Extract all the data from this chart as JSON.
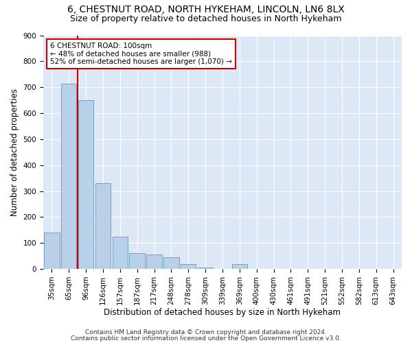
{
  "title": "6, CHESTNUT ROAD, NORTH HYKEHAM, LINCOLN, LN6 8LX",
  "subtitle": "Size of property relative to detached houses in North Hykeham",
  "xlabel": "Distribution of detached houses by size in North Hykeham",
  "ylabel": "Number of detached properties",
  "categories": [
    "35sqm",
    "65sqm",
    "96sqm",
    "126sqm",
    "157sqm",
    "187sqm",
    "217sqm",
    "248sqm",
    "278sqm",
    "309sqm",
    "339sqm",
    "369sqm",
    "400sqm",
    "430sqm",
    "461sqm",
    "491sqm",
    "521sqm",
    "552sqm",
    "582sqm",
    "613sqm",
    "643sqm"
  ],
  "values": [
    140,
    715,
    650,
    330,
    125,
    60,
    55,
    45,
    20,
    5,
    0,
    20,
    0,
    0,
    0,
    0,
    0,
    0,
    0,
    0,
    0
  ],
  "bar_color": "#b8d0e8",
  "bar_edge_color": "#6699bb",
  "red_line_x": 1.5,
  "annotation_text": "6 CHESTNUT ROAD: 100sqm\n← 48% of detached houses are smaller (988)\n52% of semi-detached houses are larger (1,070) →",
  "annotation_box_color": "white",
  "annotation_box_edge_color": "#cc0000",
  "vline_color": "#cc0000",
  "ylim": [
    0,
    900
  ],
  "yticks": [
    0,
    100,
    200,
    300,
    400,
    500,
    600,
    700,
    800,
    900
  ],
  "footer_line1": "Contains HM Land Registry data © Crown copyright and database right 2024.",
  "footer_line2": "Contains public sector information licensed under the Open Government Licence v3.0.",
  "plot_bg_color": "#dce8f5",
  "title_fontsize": 10,
  "subtitle_fontsize": 9,
  "tick_fontsize": 7.5,
  "label_fontsize": 8.5,
  "footer_fontsize": 6.5,
  "annotation_fontsize": 7.5
}
